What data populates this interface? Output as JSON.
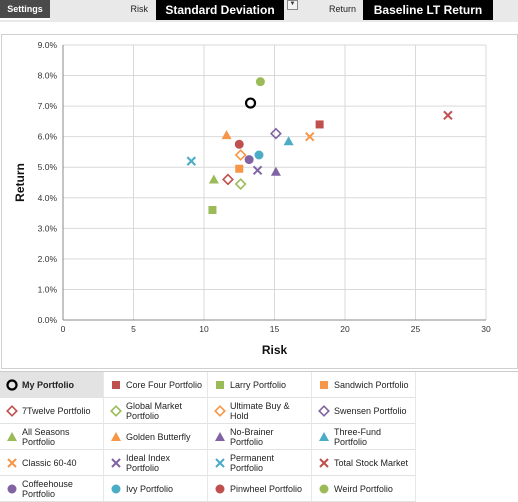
{
  "topbar": {
    "settings_label": "Settings",
    "risk_label": "Risk",
    "risk_value": "Standard Deviation",
    "return_label": "Return",
    "return_value": "Baseline LT Return"
  },
  "colors": {
    "black": "#000000",
    "red": "#c0504d",
    "green": "#9bbb59",
    "orange": "#f79646",
    "purple": "#8064a2",
    "teal": "#4bacc6"
  },
  "chart_data": {
    "type": "scatter",
    "xlabel": "Risk",
    "ylabel": "Return",
    "xlim": [
      0,
      30
    ],
    "ylim": [
      0,
      9
    ],
    "xticks": [
      "0",
      "5",
      "10",
      "15",
      "20",
      "25",
      "30"
    ],
    "yticks": [
      "0.0%",
      "1.0%",
      "2.0%",
      "3.0%",
      "4.0%",
      "5.0%",
      "6.0%",
      "7.0%",
      "8.0%",
      "9.0%"
    ],
    "grid": true,
    "series": [
      {
        "name": "My Portfolio",
        "x": 13.3,
        "y": 7.1,
        "marker": "circle-open",
        "color": "#000000"
      },
      {
        "name": "Core Four Portfolio",
        "x": 18.2,
        "y": 6.4,
        "marker": "square",
        "color": "#c0504d"
      },
      {
        "name": "Larry Portfolio",
        "x": 10.6,
        "y": 3.6,
        "marker": "square",
        "color": "#9bbb59"
      },
      {
        "name": "Sandwich Portfolio",
        "x": 12.5,
        "y": 4.95,
        "marker": "square",
        "color": "#f79646"
      },
      {
        "name": "7Twelve Portfolio",
        "x": 11.7,
        "y": 4.6,
        "marker": "diamond-open",
        "color": "#c0504d"
      },
      {
        "name": "Global Market Portfolio",
        "x": 12.6,
        "y": 4.45,
        "marker": "diamond-open",
        "color": "#9bbb59"
      },
      {
        "name": "Ultimate Buy & Hold",
        "x": 12.6,
        "y": 5.4,
        "marker": "diamond-open",
        "color": "#f79646"
      },
      {
        "name": "Swensen Portfolio",
        "x": 15.1,
        "y": 6.1,
        "marker": "diamond-open",
        "color": "#8064a2"
      },
      {
        "name": "All Seasons Portfolio",
        "x": 10.7,
        "y": 4.6,
        "marker": "triangle",
        "color": "#9bbb59"
      },
      {
        "name": "Golden Butterfly",
        "x": 11.6,
        "y": 6.05,
        "marker": "triangle",
        "color": "#f79646"
      },
      {
        "name": "No-Brainer Portfolio",
        "x": 15.1,
        "y": 4.85,
        "marker": "triangle",
        "color": "#8064a2"
      },
      {
        "name": "Three-Fund Portfolio",
        "x": 16.0,
        "y": 5.85,
        "marker": "triangle",
        "color": "#4bacc6"
      },
      {
        "name": "Classic 60-40",
        "x": 17.5,
        "y": 6.0,
        "marker": "x",
        "color": "#f79646"
      },
      {
        "name": "Ideal Index Portfolio",
        "x": 13.8,
        "y": 4.9,
        "marker": "x",
        "color": "#8064a2"
      },
      {
        "name": "Permanent Portfolio",
        "x": 9.1,
        "y": 5.2,
        "marker": "x",
        "color": "#4bacc6"
      },
      {
        "name": "Total Stock Market",
        "x": 27.3,
        "y": 6.7,
        "marker": "x",
        "color": "#c0504d"
      },
      {
        "name": "Coffeehouse Portfolio",
        "x": 13.2,
        "y": 5.25,
        "marker": "circle",
        "color": "#8064a2"
      },
      {
        "name": "Ivy Portfolio",
        "x": 13.9,
        "y": 5.4,
        "marker": "circle",
        "color": "#4bacc6"
      },
      {
        "name": "Pinwheel Portfolio",
        "x": 12.5,
        "y": 5.75,
        "marker": "circle",
        "color": "#c0504d"
      },
      {
        "name": "Weird Portfolio",
        "x": 14.0,
        "y": 7.8,
        "marker": "circle",
        "color": "#9bbb59"
      }
    ]
  },
  "legend": {
    "items": [
      {
        "label": "My Portfolio",
        "marker": "circle-open",
        "color": "#000000",
        "selected": true
      },
      {
        "label": "Core Four Portfolio",
        "marker": "square",
        "color": "#c0504d"
      },
      {
        "label": "Larry Portfolio",
        "marker": "square",
        "color": "#9bbb59"
      },
      {
        "label": "Sandwich Portfolio",
        "marker": "square",
        "color": "#f79646"
      },
      {
        "label": "7Twelve Portfolio",
        "marker": "diamond-open",
        "color": "#c0504d"
      },
      {
        "label": "Global Market Portfolio",
        "marker": "diamond-open",
        "color": "#9bbb59"
      },
      {
        "label": "Ultimate Buy & Hold",
        "marker": "diamond-open",
        "color": "#f79646"
      },
      {
        "label": "Swensen Portfolio",
        "marker": "diamond-open",
        "color": "#8064a2"
      },
      {
        "label": "All Seasons Portfolio",
        "marker": "triangle",
        "color": "#9bbb59"
      },
      {
        "label": "Golden Butterfly",
        "marker": "triangle",
        "color": "#f79646"
      },
      {
        "label": "No-Brainer Portfolio",
        "marker": "triangle",
        "color": "#8064a2"
      },
      {
        "label": "Three-Fund Portfolio",
        "marker": "triangle",
        "color": "#4bacc6"
      },
      {
        "label": "Classic 60-40",
        "marker": "x",
        "color": "#f79646"
      },
      {
        "label": "Ideal Index Portfolio",
        "marker": "x",
        "color": "#8064a2"
      },
      {
        "label": "Permanent Portfolio",
        "marker": "x",
        "color": "#4bacc6"
      },
      {
        "label": "Total Stock Market",
        "marker": "x",
        "color": "#c0504d"
      },
      {
        "label": "Coffeehouse Portfolio",
        "marker": "circle",
        "color": "#8064a2"
      },
      {
        "label": "Ivy Portfolio",
        "marker": "circle",
        "color": "#4bacc6"
      },
      {
        "label": "Pinwheel Portfolio",
        "marker": "circle",
        "color": "#c0504d"
      },
      {
        "label": "Weird Portfolio",
        "marker": "circle",
        "color": "#9bbb59"
      }
    ]
  }
}
